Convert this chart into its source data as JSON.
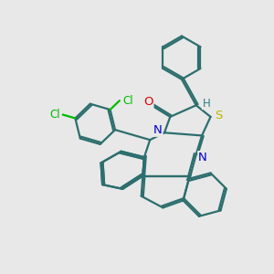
{
  "bg_color": "#e8e8e8",
  "bond_color": "#2d6e6e",
  "bond_lw": 1.6,
  "S_color": "#b8b800",
  "O_color": "#dd0000",
  "N_color": "#0000cc",
  "Cl_color": "#00bb00",
  "H_color": "#2d8080",
  "label_fs": 9,
  "xlim": [
    0.5,
    9.0
  ],
  "ylim": [
    1.0,
    10.5
  ]
}
